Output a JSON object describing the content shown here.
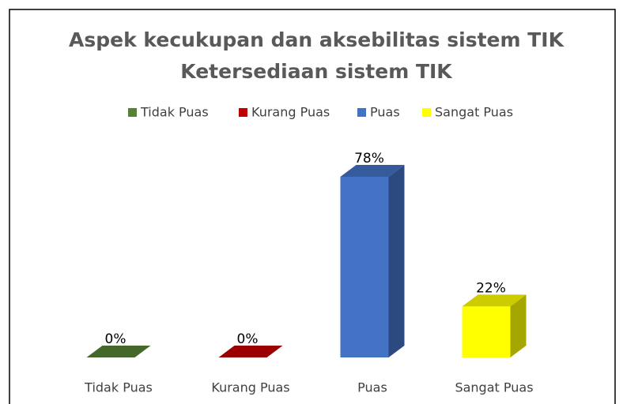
{
  "chart_data": {
    "type": "bar3d",
    "title": [
      "Aspek kecukupan dan aksebilitas sistem TIK",
      "Ketersediaan sistem TIK"
    ],
    "categories": [
      "Tidak Puas",
      "Kurang Puas",
      "Puas",
      "Sangat Puas"
    ],
    "values": [
      0,
      0,
      78,
      22
    ],
    "value_labels": [
      "0%",
      "0%",
      "78%",
      "22%"
    ],
    "colors": [
      "#548235",
      "#c00000",
      "#4472c4",
      "#ffff00"
    ],
    "legend": "top"
  }
}
